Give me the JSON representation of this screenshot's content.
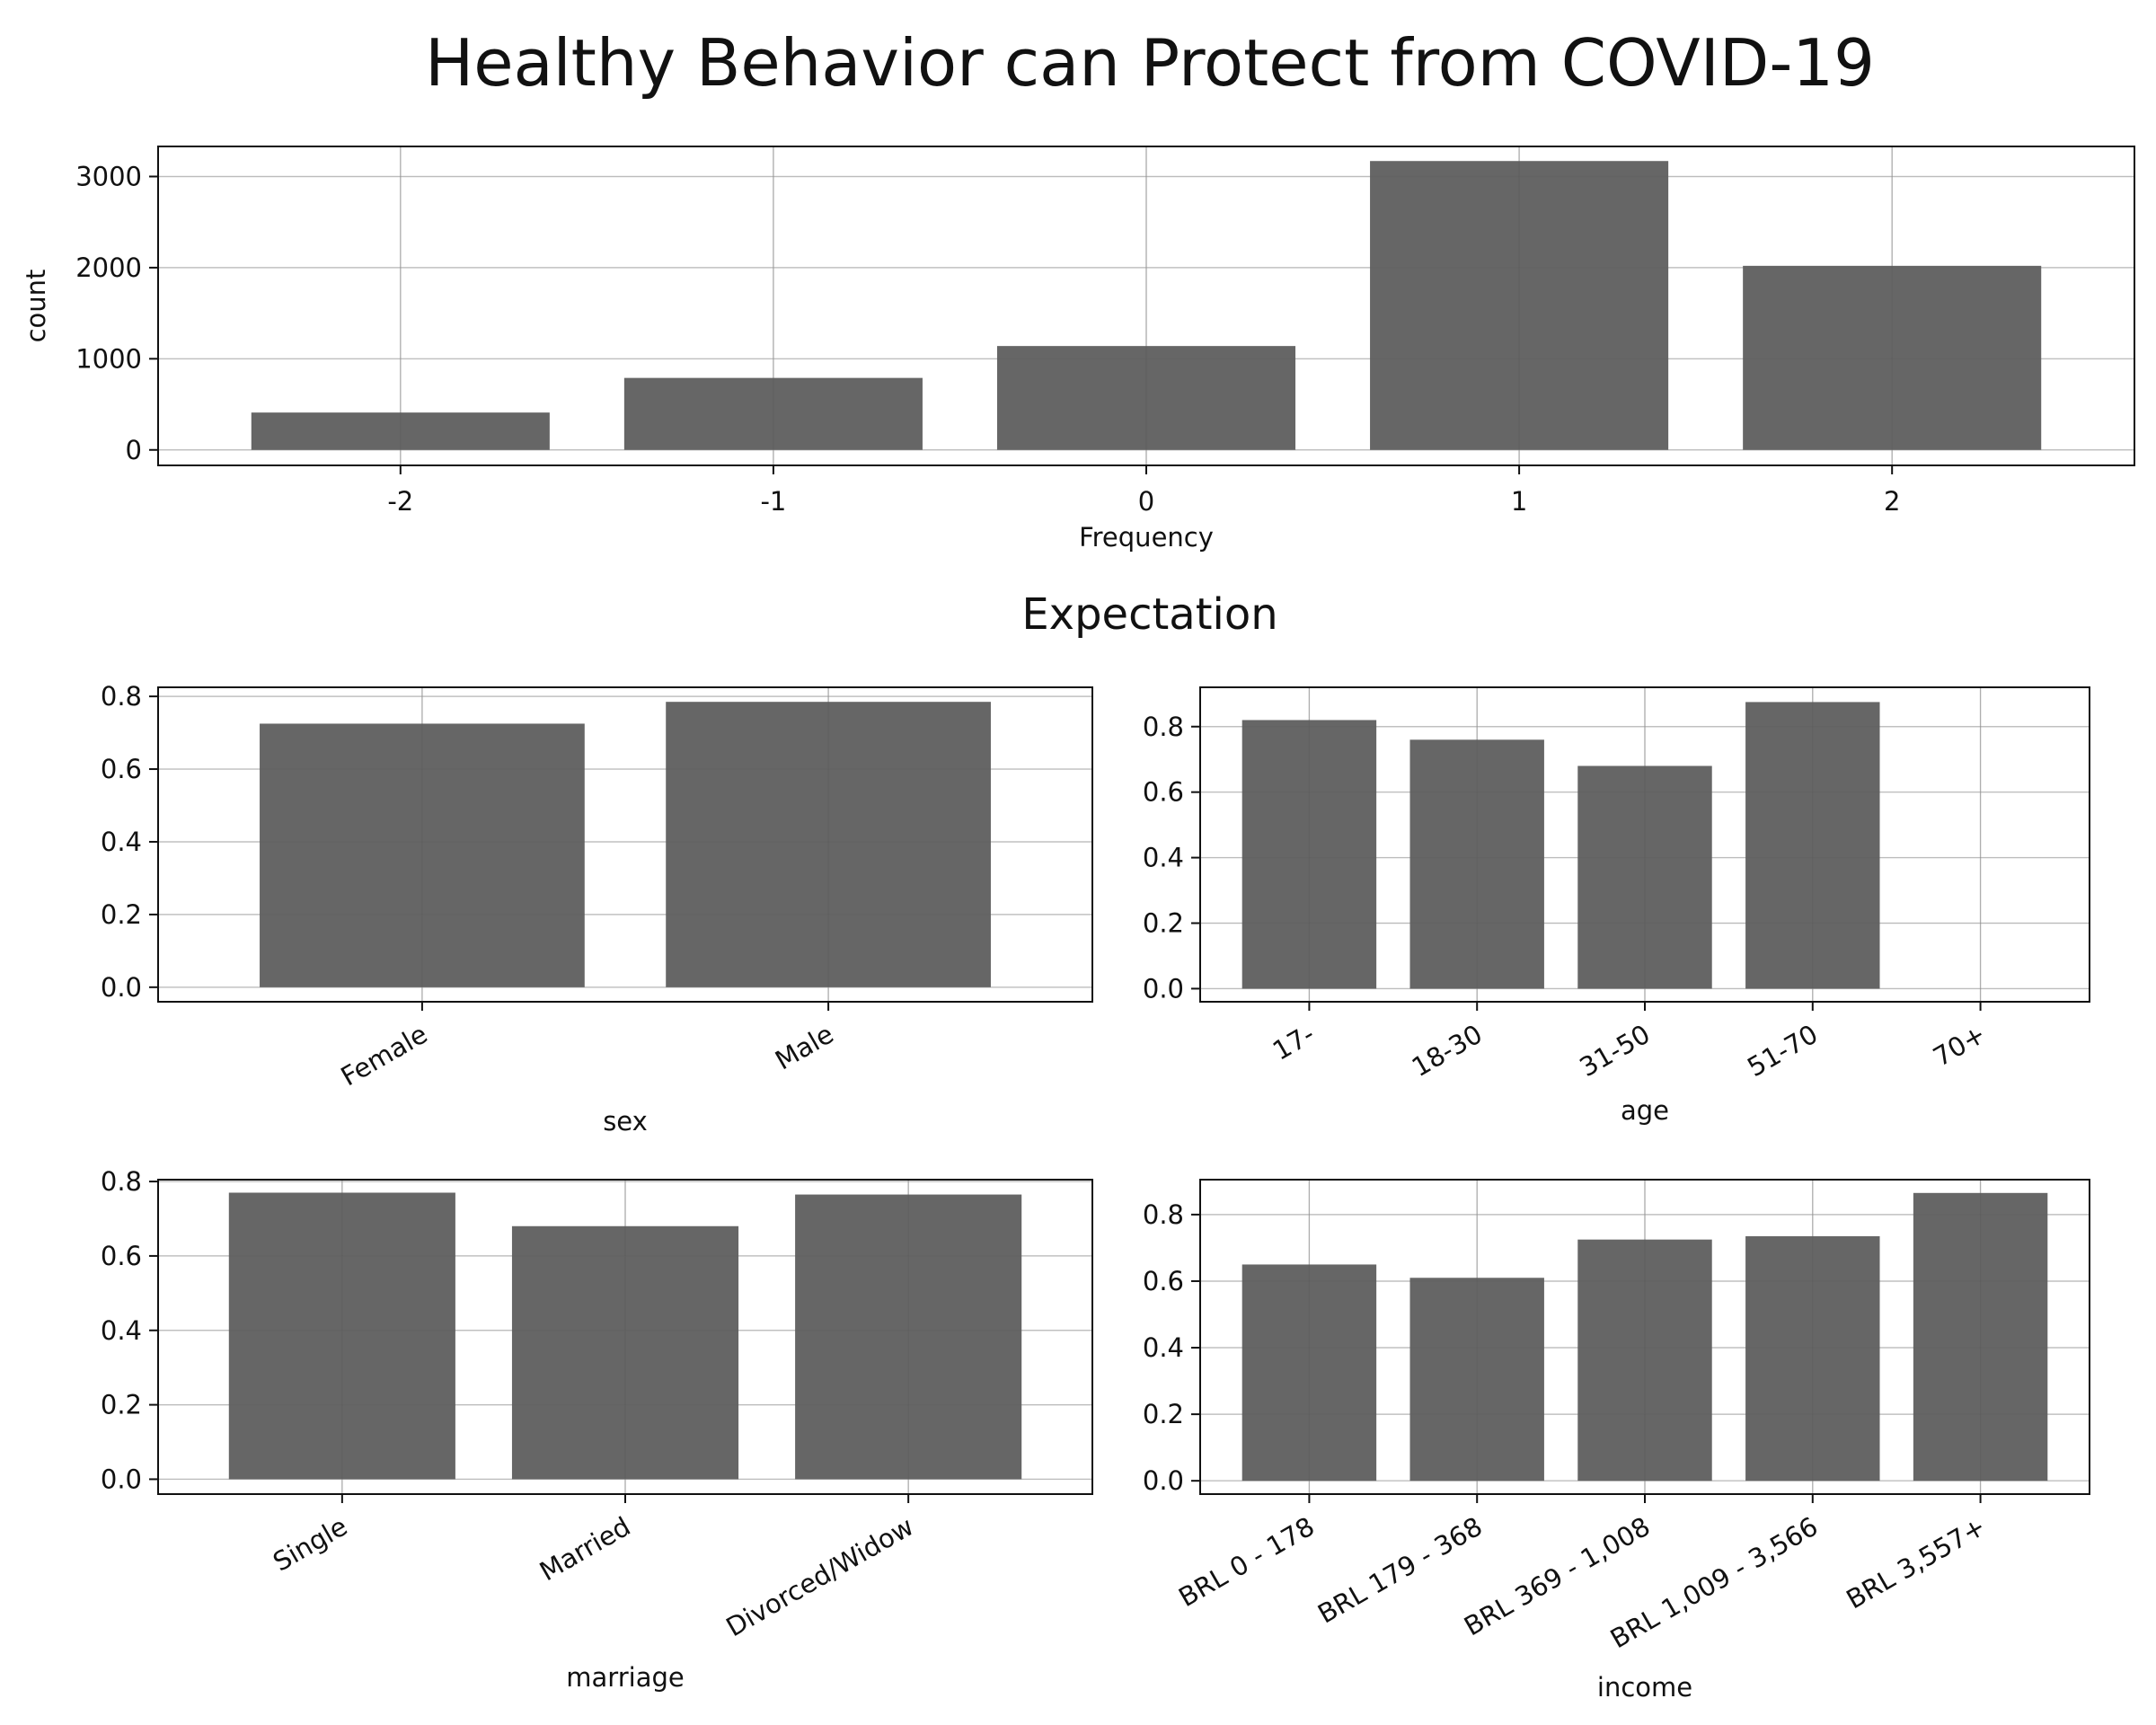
{
  "figure": {
    "title": "Healthy Behavior can Protect from COVID-19",
    "subtitle": "Expectation",
    "bar_color": "#666666",
    "grid_color": "#dcdcdc"
  },
  "chart_data": [
    {
      "id": "frequency",
      "type": "bar",
      "title": "",
      "categories": [
        "-2",
        "-1",
        "0",
        "1",
        "2"
      ],
      "values": [
        410,
        790,
        1140,
        3170,
        2020
      ],
      "xlabel": "Frequency",
      "ylabel": "count",
      "ylim": [
        -170,
        3330
      ],
      "yticks": [
        0,
        1000,
        2000,
        3000
      ],
      "ytick_labels": [
        "0",
        "1000",
        "2000",
        "3000"
      ],
      "grid": true,
      "rotate_xticks": false
    },
    {
      "id": "sex",
      "type": "bar",
      "title": "",
      "categories": [
        "Female",
        "Male"
      ],
      "values": [
        0.725,
        0.785
      ],
      "xlabel": "sex",
      "ylabel": "",
      "ylim": [
        -0.04,
        0.825
      ],
      "yticks": [
        0,
        0.2,
        0.4,
        0.6,
        0.8
      ],
      "ytick_labels": [
        "0.0",
        "0.2",
        "0.4",
        "0.6",
        "0.8"
      ],
      "grid": true,
      "rotate_xticks": true
    },
    {
      "id": "age",
      "type": "bar",
      "title": "",
      "categories": [
        "17-",
        "18-30",
        "31-50",
        "51-70",
        "70+"
      ],
      "values": [
        0.82,
        0.76,
        0.68,
        0.875,
        0
      ],
      "xlabel": "age",
      "ylabel": "",
      "ylim": [
        -0.04,
        0.92
      ],
      "yticks": [
        0,
        0.2,
        0.4,
        0.6,
        0.8
      ],
      "ytick_labels": [
        "0.0",
        "0.2",
        "0.4",
        "0.6",
        "0.8"
      ],
      "grid": true,
      "rotate_xticks": true
    },
    {
      "id": "marriage",
      "type": "bar",
      "title": "",
      "categories": [
        "Single",
        "Married",
        "Divorced/Widow"
      ],
      "values": [
        0.77,
        0.68,
        0.765
      ],
      "xlabel": "marriage",
      "ylabel": "",
      "ylim": [
        -0.04,
        0.805
      ],
      "yticks": [
        0,
        0.2,
        0.4,
        0.6,
        0.8
      ],
      "ytick_labels": [
        "0.0",
        "0.2",
        "0.4",
        "0.6",
        "0.8"
      ],
      "grid": true,
      "rotate_xticks": true
    },
    {
      "id": "income",
      "type": "bar",
      "title": "",
      "categories": [
        "BRL 0 - 178",
        "BRL 179 - 368",
        "BRL 369 - 1,008",
        "BRL 1,009 - 3,566",
        "BRL 3,557+"
      ],
      "values": [
        0.65,
        0.61,
        0.725,
        0.735,
        0.865
      ],
      "xlabel": "income",
      "ylabel": "",
      "ylim": [
        -0.04,
        0.905
      ],
      "yticks": [
        0,
        0.2,
        0.4,
        0.6,
        0.8
      ],
      "ytick_labels": [
        "0.0",
        "0.2",
        "0.4",
        "0.6",
        "0.8"
      ],
      "grid": true,
      "rotate_xticks": true
    }
  ]
}
